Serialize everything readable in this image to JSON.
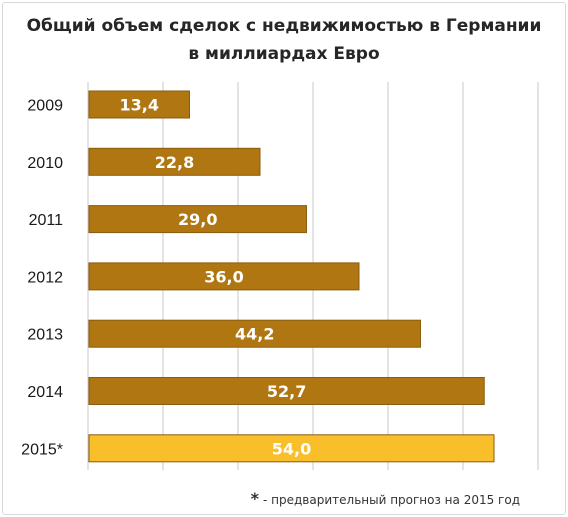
{
  "chart_data": {
    "type": "bar",
    "orientation": "horizontal",
    "title_line1": "Общий объем сделок с недвижимостью в Германии",
    "title_line2": "в миллиардах Евро",
    "categories": [
      "2009",
      "2010",
      "2011",
      "2012",
      "2013",
      "2014",
      "2015*"
    ],
    "values": [
      13.4,
      22.8,
      29.0,
      36.0,
      44.2,
      52.7,
      54.0
    ],
    "value_labels": [
      "13,4",
      "22,8",
      "29,0",
      "36,0",
      "44,2",
      "52,7",
      "54,0"
    ],
    "xlim": [
      0,
      60
    ],
    "grid": true,
    "colors": {
      "bar": "#b07612",
      "bar_highlight": "#f9bf2a",
      "bar_border": "#8a5c0e",
      "grid": "#c8c8c8",
      "label": "#ffffff"
    },
    "highlight_index": 6,
    "footnote_star": "*",
    "footnote_text": "- предварительный прогноз на 2015 год"
  }
}
